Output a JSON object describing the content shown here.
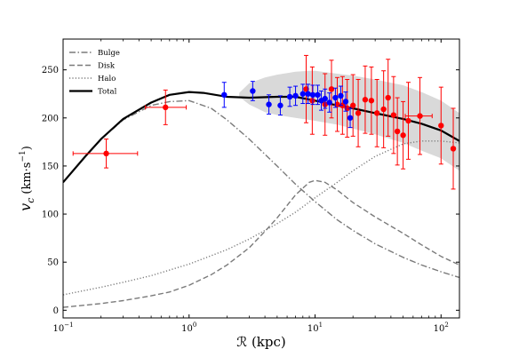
{
  "chart_data": {
    "type": "line",
    "xscale": "log",
    "xlim": [
      0.1,
      140
    ],
    "ylim": [
      -8,
      282
    ],
    "xlabel": "ℛ (kpc)",
    "ylabel": "vc (km·s−1)",
    "ylabel_parts": {
      "symbol": "v",
      "subscript": "c",
      "unit": "(km·s",
      "exp": "−1",
      "close": ")"
    },
    "xticks": [
      {
        "value": 0.1,
        "base": "10",
        "exp": "−1"
      },
      {
        "value": 1,
        "base": "10",
        "exp": "0"
      },
      {
        "value": 10,
        "base": "10",
        "exp": "1"
      },
      {
        "value": 100,
        "base": "10",
        "exp": "2"
      }
    ],
    "yticks": [
      "0",
      "50",
      "100",
      "150",
      "200",
      "250"
    ],
    "legend_position": "top-left",
    "series": [
      {
        "name": "Bulge",
        "style": "dashdot",
        "color": "#7a7a7a",
        "x": [
          0.1,
          0.15,
          0.2,
          0.3,
          0.5,
          0.7,
          1.0,
          1.5,
          2,
          3,
          5,
          7,
          10,
          15,
          20,
          30,
          50,
          70,
          100,
          140
        ],
        "y": [
          133,
          160,
          178,
          198,
          213,
          217,
          218,
          210,
          198,
          178,
          150,
          131,
          113,
          94,
          83,
          69,
          55,
          47,
          40,
          34
        ]
      },
      {
        "name": "Disk",
        "style": "dashed",
        "color": "#7a7a7a",
        "x": [
          0.1,
          0.2,
          0.3,
          0.5,
          0.7,
          1.0,
          1.5,
          2,
          3,
          4,
          5,
          7,
          9,
          10,
          12,
          15,
          20,
          30,
          50,
          70,
          100,
          140
        ],
        "y": [
          3,
          7,
          10,
          15,
          19,
          26,
          37,
          47,
          65,
          82,
          96,
          120,
          133,
          135,
          133,
          125,
          112,
          97,
          80,
          68,
          56,
          47
        ]
      },
      {
        "name": "Halo",
        "style": "dotted",
        "color": "#7a7a7a",
        "x": [
          0.1,
          0.2,
          0.3,
          0.5,
          1.0,
          2,
          3,
          5,
          7,
          10,
          15,
          20,
          30,
          50,
          70,
          100,
          140
        ],
        "y": [
          16,
          24,
          29,
          36,
          48,
          63,
          74,
          90,
          102,
          117,
          133,
          145,
          160,
          173,
          176,
          176,
          174
        ]
      },
      {
        "name": "Total",
        "style": "solid",
        "color": "#000000",
        "x": [
          0.1,
          0.15,
          0.2,
          0.3,
          0.5,
          0.7,
          1.0,
          1.3,
          2,
          3,
          5,
          7,
          10,
          15,
          20,
          30,
          50,
          70,
          100,
          140
        ],
        "y": [
          133,
          160,
          178,
          199,
          216,
          224,
          227,
          226,
          222,
          221,
          222,
          222,
          218,
          213,
          210,
          205,
          199,
          194,
          187,
          176
        ]
      }
    ],
    "band": {
      "name": "uncertainty band",
      "color": "#d9d9d9",
      "x": [
        2.5,
        3,
        4,
        5,
        7,
        9,
        10,
        15,
        20,
        30,
        50,
        70,
        100,
        140
      ],
      "upper": [
        226,
        236,
        242,
        245,
        248,
        249,
        249,
        246,
        244,
        240,
        234,
        227,
        218,
        205
      ],
      "lower": [
        222,
        214,
        206,
        203,
        200,
        198,
        197,
        193,
        189,
        183,
        174,
        166,
        158,
        145
      ]
    },
    "points_red": {
      "color": "#ff0000",
      "items": [
        {
          "x": 0.22,
          "y": 163,
          "yerr": 15,
          "xlo": 0.12,
          "xhi": 0.39
        },
        {
          "x": 0.65,
          "y": 211,
          "yerr": 18,
          "xlo": 0.45,
          "xhi": 0.95
        },
        {
          "x": 8.5,
          "y": 230,
          "yerr": 35
        },
        {
          "x": 9.5,
          "y": 218,
          "yerr": 35
        },
        {
          "x": 12,
          "y": 214,
          "yerr": 32
        },
        {
          "x": 13.5,
          "y": 230,
          "yerr": 30
        },
        {
          "x": 15,
          "y": 214,
          "yerr": 28
        },
        {
          "x": 16.5,
          "y": 213,
          "yerr": 30
        },
        {
          "x": 18,
          "y": 210,
          "yerr": 30
        },
        {
          "x": 20,
          "y": 213,
          "yerr": 32
        },
        {
          "x": 22,
          "y": 205,
          "yerr": 35
        },
        {
          "x": 25,
          "y": 219,
          "yerr": 35
        },
        {
          "x": 28,
          "y": 218,
          "yerr": 35
        },
        {
          "x": 31,
          "y": 205,
          "yerr": 35
        },
        {
          "x": 35,
          "y": 209,
          "yerr": 40
        },
        {
          "x": 38,
          "y": 221,
          "yerr": 40
        },
        {
          "x": 42,
          "y": 203,
          "yerr": 40
        },
        {
          "x": 45,
          "y": 186,
          "yerr": 35
        },
        {
          "x": 50,
          "y": 182,
          "yerr": 35
        },
        {
          "x": 55,
          "y": 197,
          "yerr": 40
        },
        {
          "x": 68,
          "y": 202,
          "yerr": 40,
          "xlo": 52,
          "xhi": 85
        },
        {
          "x": 100,
          "y": 192,
          "yerr": 40
        },
        {
          "x": 125,
          "y": 168,
          "yerr": 42
        }
      ]
    },
    "points_blue": {
      "color": "#0000ff",
      "items": [
        {
          "x": 1.9,
          "y": 224,
          "yerr": 13
        },
        {
          "x": 3.2,
          "y": 228,
          "yerr": 10
        },
        {
          "x": 4.3,
          "y": 214,
          "yerr": 10
        },
        {
          "x": 5.3,
          "y": 213,
          "yerr": 10
        },
        {
          "x": 6.3,
          "y": 222,
          "yerr": 10
        },
        {
          "x": 7.0,
          "y": 223,
          "yerr": 10
        },
        {
          "x": 8.0,
          "y": 225,
          "yerr": 10
        },
        {
          "x": 8.8,
          "y": 225,
          "yerr": 10
        },
        {
          "x": 9.6,
          "y": 224,
          "yerr": 10
        },
        {
          "x": 10.5,
          "y": 224,
          "yerr": 10
        },
        {
          "x": 11.2,
          "y": 218,
          "yerr": 10
        },
        {
          "x": 12.0,
          "y": 220,
          "yerr": 10
        },
        {
          "x": 13.0,
          "y": 216,
          "yerr": 10
        },
        {
          "x": 14.5,
          "y": 221,
          "yerr": 10
        },
        {
          "x": 16.0,
          "y": 223,
          "yerr": 10
        },
        {
          "x": 17.5,
          "y": 217,
          "yerr": 10
        },
        {
          "x": 19.0,
          "y": 200,
          "yerr": 10
        }
      ]
    }
  }
}
